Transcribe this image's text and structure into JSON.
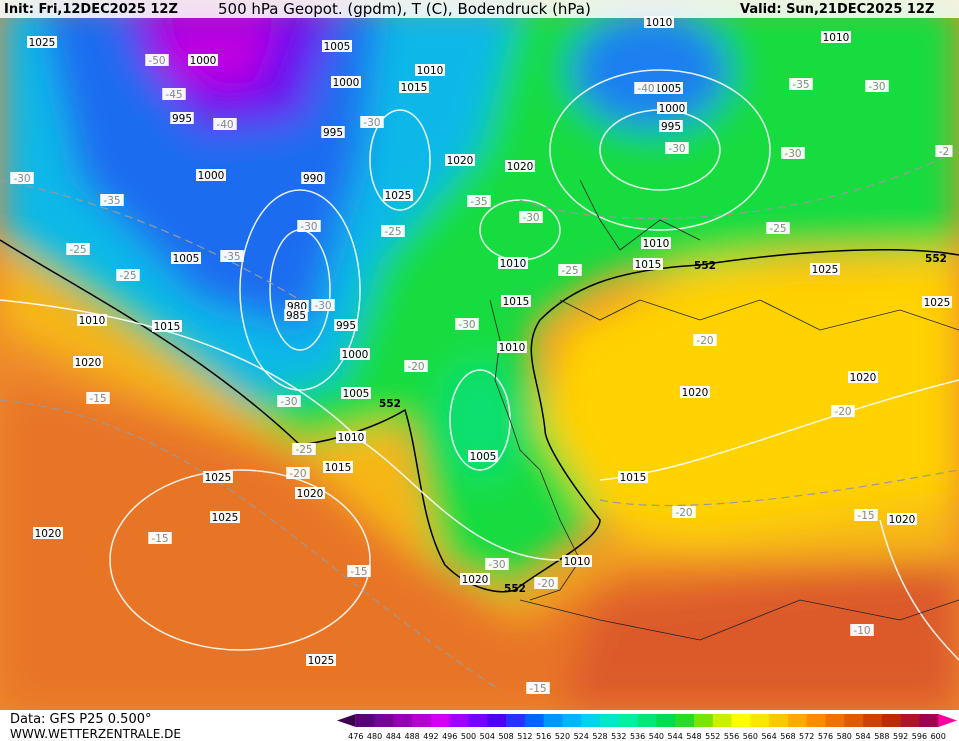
{
  "header": {
    "init": "Init: Fri,12DEC2025 12Z",
    "title": "500 hPa Geopot. (gpdm), T (C), Bodendruck (hPa)",
    "valid": "Valid: Sun,21DEC2025 12Z"
  },
  "footer": {
    "data": "Data: GFS P25 0.500°",
    "site": "WWW.WETTERZENTRALE.DE"
  },
  "colorbar": {
    "labels": [
      "476",
      "480",
      "484",
      "488",
      "492",
      "496",
      "500",
      "504",
      "508",
      "512",
      "516",
      "520",
      "524",
      "528",
      "532",
      "536",
      "540",
      "544",
      "548",
      "552",
      "556",
      "560",
      "564",
      "568",
      "572",
      "576",
      "580",
      "584",
      "588",
      "592",
      "596",
      "600"
    ],
    "colors": [
      "#3c0050",
      "#5a0078",
      "#780096",
      "#9600b4",
      "#b400d2",
      "#d200f0",
      "#a000ff",
      "#7800ff",
      "#5000f0",
      "#2832ff",
      "#0064ff",
      "#0096ff",
      "#00b4ff",
      "#00d2f0",
      "#00e6c8",
      "#00f0a0",
      "#00e678",
      "#00dc50",
      "#28dc28",
      "#78e600",
      "#c8f000",
      "#ffff00",
      "#ffe600",
      "#ffc800",
      "#ffaa00",
      "#ff8c00",
      "#f07000",
      "#e05a00",
      "#d04000",
      "#c02800",
      "#b01428",
      "#a00050",
      "#ff00a0"
    ]
  },
  "map": {
    "isobar_labels": [
      "1025",
      "1005",
      "1000",
      "1000",
      "1010",
      "1015",
      "995",
      "995",
      "1000",
      "990",
      "1025",
      "1020",
      "1020",
      "1005",
      "980",
      "985",
      "995",
      "1000",
      "1005",
      "1010",
      "1015",
      "1020",
      "1010",
      "1015",
      "1020",
      "1025",
      "1025",
      "1020",
      "1025",
      "1010",
      "1015",
      "1010",
      "1005",
      "1020",
      "1010",
      "1010",
      "1010",
      "1005",
      "1000",
      "995",
      "1010",
      "1015",
      "1025",
      "1025",
      "1020",
      "1015",
      "1020",
      "1020"
    ],
    "temperature_labels": [
      "-50",
      "-45",
      "-40",
      "-30",
      "-35",
      "-25",
      "-25",
      "-35",
      "-30",
      "-30",
      "-30",
      "-25",
      "-35",
      "-30",
      "-25",
      "-30",
      "-20",
      "-30",
      "-25",
      "-20",
      "-15",
      "-15",
      "-15",
      "-30",
      "-20",
      "-15",
      "-10",
      "-15",
      "-20",
      "-20",
      "-20",
      "-25",
      "-30",
      "-35",
      "-30",
      "-2",
      "-30",
      "-40"
    ],
    "height_labels": [
      "552",
      "552",
      "552",
      "552"
    ]
  }
}
